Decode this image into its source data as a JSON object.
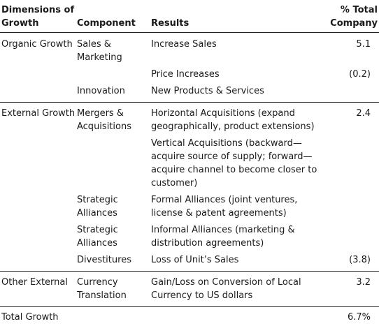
{
  "headers": {
    "dimensions": "Dimensions of Growth",
    "component": "Component",
    "results": "Results",
    "pct": "% Total Company"
  },
  "rows": [
    {
      "dimension": "Organic Growth",
      "component": "Sales & Marketing",
      "result": "Increase Sales",
      "pct": "5.1"
    },
    {
      "dimension": "",
      "component": "",
      "result": "Price Increases",
      "pct": "(0.2)"
    },
    {
      "dimension": "",
      "component": "Innovation",
      "result": "New Products & Services",
      "pct": ""
    },
    {
      "dimension": "External Growth",
      "component": "Mergers & Acquisitions",
      "result": "Horizontal Acquisitions (expand geographically, product extensions)",
      "pct": "2.4"
    },
    {
      "dimension": "",
      "component": "",
      "result": "Vertical Acquisitions (backward—acquire source of supply; forward—acquire channel to become closer to customer)",
      "pct": ""
    },
    {
      "dimension": "",
      "component": "Strategic Alliances",
      "result": "Formal Alliances (joint ventures, license & patent agreements)",
      "pct": ""
    },
    {
      "dimension": "",
      "component": "Strategic Alliances",
      "result": "Informal Alliances (marketing & distribution agreements)",
      "pct": ""
    },
    {
      "dimension": "",
      "component": "Divestitures",
      "result": "Loss of Unit’s Sales",
      "pct": "(3.8)"
    },
    {
      "dimension": "Other External",
      "component": "Currency Translation",
      "result": "Gain/Loss on Conversion of Local Currency to US dollars",
      "pct": "3.2"
    }
  ],
  "total": {
    "label": "Total Growth",
    "pct": "6.7%"
  }
}
